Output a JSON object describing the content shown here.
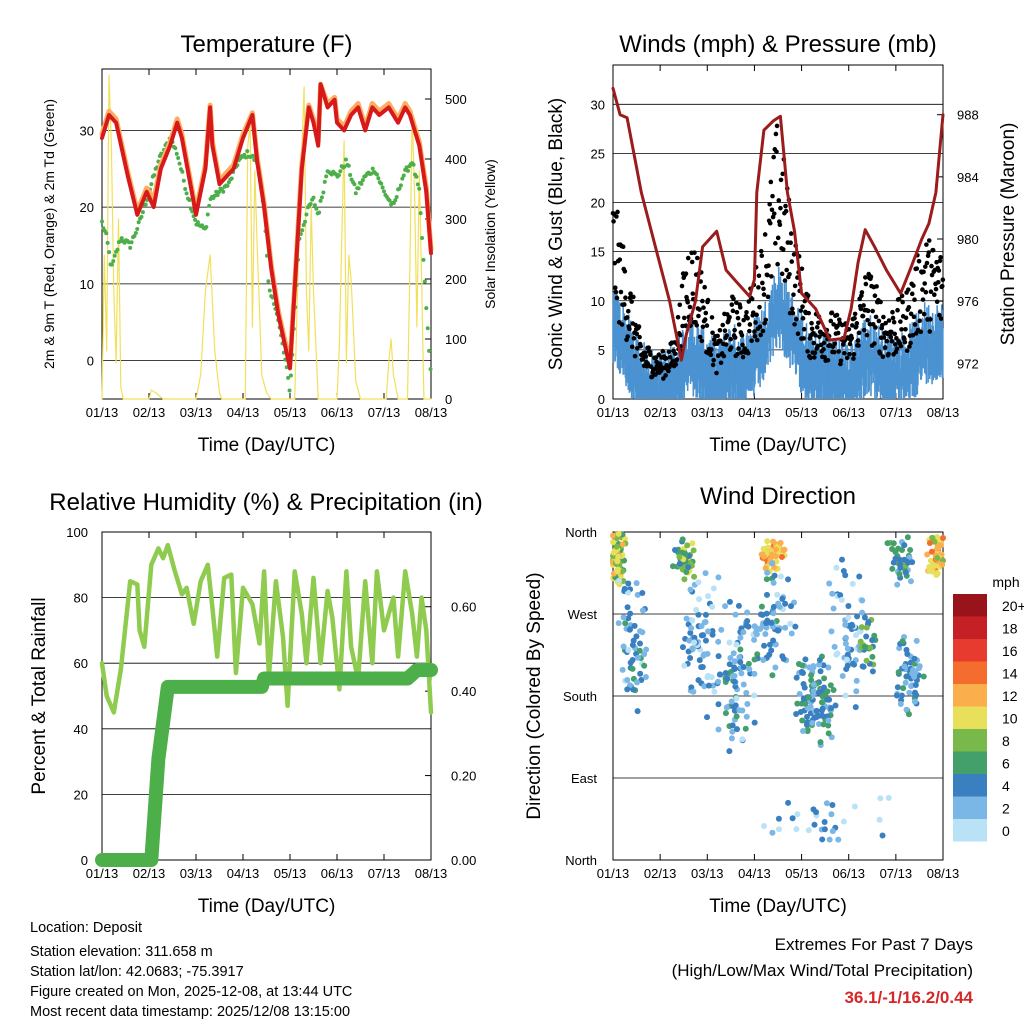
{
  "x_ticks": [
    "01/13",
    "02/13",
    "03/13",
    "04/13",
    "05/13",
    "06/13",
    "07/13",
    "08/13"
  ],
  "x_axis_label": "Time (Day/UTC)",
  "colors": {
    "temp2m": "#d7191c",
    "temp9m": "#fdae61",
    "dewpoint": "#4daf4a",
    "solar": "#f2e05a",
    "gust": "#000000",
    "wind": "#4b92d1",
    "pressure": "#9b1c1c",
    "rh": "#8fcb4f",
    "precip": "#4daf4a",
    "extremes": "#d62728"
  },
  "chart_data": [
    {
      "type": "line",
      "title": "Temperature (F)",
      "xlabel": "Time (Day/UTC)",
      "ylabel_left": "2m & 9m T (Red, Orange) & 2m Td (Green)",
      "ylabel_right": "Solar Insolation (Yellow)",
      "ylim_left": [
        -5,
        38
      ],
      "left_ticks": [
        0,
        10,
        20,
        30
      ],
      "ylim_right": [
        0,
        550
      ],
      "right_ticks": [
        0,
        100,
        200,
        300,
        400,
        500
      ],
      "x_days": [
        0,
        1,
        2,
        3,
        4,
        5,
        6,
        7
      ],
      "series": [
        {
          "name": "2m T",
          "axis": "left",
          "color_key": "temp2m",
          "x": [
            0,
            0.15,
            0.3,
            0.55,
            0.75,
            0.95,
            1.1,
            1.25,
            1.45,
            1.6,
            1.7,
            1.85,
            2.0,
            2.2,
            2.3,
            2.35,
            2.5,
            2.65,
            2.8,
            3.0,
            3.2,
            3.3,
            3.45,
            3.6,
            3.75,
            4.0,
            4.25,
            4.4,
            4.5,
            4.6,
            4.65,
            4.8,
            4.95,
            5.0,
            5.15,
            5.3,
            5.45,
            5.6,
            5.75,
            5.9,
            6.1,
            6.3,
            6.45,
            6.55,
            6.75,
            6.9,
            7.0
          ],
          "y": [
            29,
            32,
            31,
            24,
            19,
            22,
            20,
            25,
            28,
            31,
            29,
            24,
            19,
            25,
            33,
            28,
            23,
            24,
            25,
            29,
            32,
            26,
            20,
            12,
            6,
            -1,
            25,
            33,
            31,
            28,
            36,
            33,
            34,
            31,
            30,
            32,
            33,
            30,
            33,
            32,
            33,
            31,
            33,
            32,
            28,
            22,
            14
          ]
        },
        {
          "name": "9m T",
          "axis": "left",
          "color_key": "temp9m",
          "x": [
            0,
            0.15,
            0.3,
            0.55,
            0.75,
            0.95,
            1.1,
            1.25,
            1.45,
            1.6,
            1.7,
            1.85,
            2.0,
            2.2,
            2.3,
            2.35,
            2.5,
            2.65,
            2.8,
            3.0,
            3.2,
            3.3,
            3.45,
            3.6,
            3.75,
            4.0,
            4.25,
            4.4,
            4.5,
            4.6,
            4.65,
            4.8,
            4.95,
            5.0,
            5.15,
            5.3,
            5.45,
            5.6,
            5.75,
            5.9,
            6.1,
            6.3,
            6.45,
            6.55,
            6.75,
            6.9,
            7.0
          ],
          "y": [
            29.5,
            32.5,
            31.5,
            24.5,
            19.5,
            22.5,
            21,
            25.5,
            28.5,
            31.5,
            29.5,
            24.5,
            19.5,
            25.5,
            33.3,
            28.5,
            23.5,
            24.5,
            25.5,
            29.5,
            32.3,
            26.5,
            20.5,
            12.5,
            6.5,
            -0.5,
            25.5,
            33.3,
            31.5,
            28.5,
            36,
            33.5,
            34.3,
            31.5,
            30.5,
            32.5,
            33.5,
            30.5,
            33.5,
            32.5,
            33.5,
            31.5,
            33.5,
            32.5,
            28.5,
            22.5,
            14.5
          ]
        },
        {
          "name": "2m Td",
          "axis": "left",
          "color_key": "dewpoint",
          "x": [
            0,
            0.1,
            0.2,
            0.4,
            0.6,
            0.8,
            1.0,
            1.2,
            1.45,
            1.6,
            1.8,
            2.0,
            2.2,
            2.3,
            2.5,
            2.7,
            2.9,
            3.1,
            3.3,
            3.45,
            3.55,
            3.7,
            3.9,
            4.0,
            4.2,
            4.4,
            4.5,
            4.6,
            4.8,
            5.0,
            5.2,
            5.4,
            5.6,
            5.8,
            6.0,
            6.2,
            6.4,
            6.6,
            6.75,
            6.85,
            6.95,
            7.0
          ],
          "y": [
            18,
            16,
            12,
            16,
            15,
            18,
            22,
            26,
            29,
            27,
            22,
            18,
            17,
            21,
            22,
            23,
            26,
            27,
            26,
            20,
            9,
            7,
            0,
            -4,
            16,
            20,
            21,
            19,
            25,
            24,
            26,
            22,
            24,
            25,
            22,
            20,
            24,
            26,
            22,
            12,
            2,
            -2
          ]
        },
        {
          "name": "Solar Insolation",
          "axis": "right",
          "color_key": "solar",
          "x": [
            0,
            0.05,
            0.1,
            0.15,
            0.2,
            0.25,
            0.3,
            0.35,
            0.4,
            0.45,
            0.5,
            1.0,
            1.05,
            1.15,
            1.3,
            1.5,
            1.9,
            2.0,
            2.1,
            2.2,
            2.3,
            2.4,
            2.5,
            2.55,
            3.0,
            3.05,
            3.1,
            3.15,
            3.2,
            3.25,
            3.3,
            3.4,
            3.5,
            3.6,
            4.0,
            4.05,
            4.1,
            4.2,
            4.3,
            4.35,
            4.4,
            4.45,
            4.5,
            4.6,
            4.7,
            4.8,
            4.9,
            5.0,
            5.05,
            5.1,
            5.15,
            5.2,
            5.25,
            5.3,
            5.4,
            5.5,
            6.0,
            6.05,
            6.1,
            6.15,
            6.2,
            6.3,
            6.5,
            6.55,
            6.6,
            6.65,
            6.7,
            6.75,
            6.8,
            6.85,
            6.9,
            7.0
          ],
          "y": [
            0,
            240,
            80,
            540,
            420,
            180,
            60,
            300,
            20,
            0,
            0,
            0,
            15,
            10,
            0,
            0,
            0,
            0,
            40,
            180,
            240,
            80,
            10,
            0,
            0,
            0,
            420,
            460,
            120,
            380,
            260,
            40,
            10,
            0,
            0,
            0,
            0,
            300,
            520,
            180,
            80,
            320,
            180,
            0,
            0,
            0,
            0,
            0,
            90,
            260,
            430,
            60,
            240,
            200,
            30,
            0,
            0,
            0,
            60,
            100,
            40,
            0,
            0,
            220,
            480,
            340,
            120,
            380,
            200,
            0,
            0,
            0
          ]
        }
      ]
    },
    {
      "type": "scatter",
      "title": "Winds (mph) & Pressure (mb)",
      "xlabel": "Time (Day/UTC)",
      "ylabel_left": "Sonic Wind & Gust (Blue, Black)",
      "ylabel_right": "Station Pressure (Maroon)",
      "ylim_left": [
        0,
        34
      ],
      "left_ticks": [
        0,
        5,
        10,
        15,
        20,
        25,
        30
      ],
      "ylim_right": [
        969.7,
        991.2
      ],
      "right_ticks": [
        972,
        976,
        980,
        984,
        988
      ],
      "series": [
        {
          "name": "Sonic Wind mean",
          "axis": "left",
          "color_key": "wind",
          "x": [
            0,
            0.3,
            0.6,
            1.0,
            1.3,
            1.6,
            1.8,
            2.2,
            2.5,
            2.8,
            3.2,
            3.5,
            3.8,
            4.2,
            4.6,
            5.0,
            5.4,
            5.8,
            6.2,
            6.6,
            7.0
          ],
          "y": [
            8,
            5,
            2,
            1,
            2,
            5,
            4,
            2,
            4,
            3,
            6,
            10,
            7,
            3,
            3,
            2,
            5,
            3,
            3,
            6,
            6
          ]
        },
        {
          "name": "Gust mean",
          "axis": "left",
          "color_key": "gust",
          "x": [
            0,
            0.3,
            0.6,
            1.0,
            1.3,
            1.6,
            1.8,
            2.2,
            2.5,
            2.8,
            3.2,
            3.5,
            3.8,
            4.2,
            4.6,
            5.0,
            5.4,
            5.8,
            6.2,
            6.6,
            7.0
          ],
          "y": [
            14,
            9,
            4,
            3,
            4,
            11,
            10,
            4,
            7,
            6,
            11,
            19,
            12,
            6,
            6,
            5,
            9,
            6,
            7,
            11,
            10
          ]
        },
        {
          "name": "Station Pressure",
          "axis": "right",
          "color_key": "pressure",
          "x": [
            0,
            0.15,
            0.3,
            0.6,
            0.9,
            1.2,
            1.45,
            1.55,
            1.75,
            1.9,
            2.2,
            2.4,
            2.6,
            2.9,
            3.0,
            3.05,
            3.2,
            3.4,
            3.55,
            3.7,
            3.85,
            4.0,
            4.3,
            4.6,
            4.9,
            5.05,
            5.2,
            5.35,
            5.55,
            5.8,
            6.1,
            6.3,
            6.55,
            6.7,
            6.85,
            7.0
          ],
          "y": [
            989.7,
            988,
            987.8,
            983,
            979.5,
            976,
            972.2,
            973.8,
            976,
            979.5,
            980.5,
            978,
            977.3,
            976.3,
            977.4,
            983,
            987,
            987.6,
            987.9,
            983,
            980.5,
            976.5,
            975.5,
            973.5,
            973.6,
            975.5,
            978.5,
            980.6,
            979.5,
            978,
            976.5,
            978,
            980,
            981,
            983,
            988
          ]
        }
      ]
    },
    {
      "type": "line",
      "title": "Relative Humidity (%) & Precipitation (in)",
      "xlabel": "Time (Day/UTC)",
      "ylabel_left": "Percent & Total Rainfall",
      "ylim_left": [
        0,
        100
      ],
      "left_ticks": [
        0,
        20,
        40,
        60,
        80,
        100
      ],
      "ylim_right": [
        0,
        0.777
      ],
      "right_ticks": [
        "0.00",
        "0.20",
        "0.40",
        "0.60"
      ],
      "series": [
        {
          "name": "Relative Humidity",
          "axis": "left",
          "color_key": "rh",
          "x": [
            0,
            0.1,
            0.25,
            0.4,
            0.6,
            0.75,
            0.8,
            0.9,
            1.05,
            1.2,
            1.3,
            1.4,
            1.55,
            1.7,
            1.8,
            1.95,
            2.1,
            2.25,
            2.35,
            2.45,
            2.6,
            2.75,
            2.85,
            3.0,
            3.2,
            3.35,
            3.45,
            3.55,
            3.7,
            3.85,
            3.95,
            4.1,
            4.25,
            4.35,
            4.5,
            4.65,
            4.8,
            4.9,
            5.05,
            5.2,
            5.3,
            5.45,
            5.6,
            5.75,
            5.85,
            6.0,
            6.2,
            6.3,
            6.45,
            6.6,
            6.7,
            6.8,
            6.9,
            7.0
          ],
          "y": [
            60,
            50,
            45,
            58,
            85,
            84,
            70,
            65,
            90,
            95,
            92,
            96,
            88,
            81,
            83,
            72,
            85,
            90,
            77,
            62,
            86,
            87,
            57,
            83,
            78,
            66,
            88,
            56,
            85,
            68,
            47,
            88,
            75,
            60,
            86,
            60,
            82,
            74,
            52,
            88,
            65,
            55,
            85,
            60,
            88,
            70,
            80,
            62,
            88,
            75,
            62,
            80,
            70,
            45
          ]
        },
        {
          "name": "Total Precipitation",
          "axis": "right",
          "color_key": "precip",
          "x": [
            0,
            0.6,
            1.05,
            1.2,
            1.4,
            1.7,
            2.0,
            2.5,
            3.0,
            3.4,
            3.45,
            3.6,
            4.0,
            4.5,
            5.0,
            5.5,
            6.0,
            6.5,
            6.6,
            6.7,
            7.0
          ],
          "y": [
            0,
            0,
            0,
            0.24,
            0.41,
            0.41,
            0.41,
            0.41,
            0.41,
            0.41,
            0.43,
            0.43,
            0.43,
            0.43,
            0.43,
            0.43,
            0.43,
            0.43,
            0.44,
            0.45,
            0.45
          ]
        }
      ]
    },
    {
      "type": "scatter",
      "title": "Wind Direction",
      "xlabel": "Time (Day/UTC)",
      "ylabel": "Direction (Colored By Speed)",
      "ylim": [
        0,
        360
      ],
      "y_ticks": [
        {
          "value": 0,
          "label": "North"
        },
        {
          "value": 90,
          "label": "East"
        },
        {
          "value": 180,
          "label": "South"
        },
        {
          "value": 270,
          "label": "West"
        },
        {
          "value": 360,
          "label": "North"
        }
      ],
      "clusters": [
        {
          "x_center": 0.1,
          "x_spread": 0.18,
          "dir_center": 335,
          "dir_spread": 40,
          "speed": 9,
          "count": 70
        },
        {
          "x_center": 0.4,
          "x_spread": 0.35,
          "dir_center": 230,
          "dir_spread": 80,
          "speed": 3,
          "count": 60
        },
        {
          "x_center": 1.5,
          "x_spread": 0.25,
          "dir_center": 330,
          "dir_spread": 25,
          "speed": 7,
          "count": 45
        },
        {
          "x_center": 1.9,
          "x_spread": 0.5,
          "dir_center": 240,
          "dir_spread": 90,
          "speed": 2,
          "count": 70
        },
        {
          "x_center": 2.6,
          "x_spread": 0.5,
          "dir_center": 200,
          "dir_spread": 90,
          "speed": 3,
          "count": 90
        },
        {
          "x_center": 3.4,
          "x_spread": 0.3,
          "dir_center": 335,
          "dir_spread": 25,
          "speed": 12,
          "count": 50
        },
        {
          "x_center": 3.4,
          "x_spread": 0.5,
          "dir_center": 260,
          "dir_spread": 70,
          "speed": 3,
          "count": 70
        },
        {
          "x_center": 4.3,
          "x_spread": 0.5,
          "dir_center": 180,
          "dir_spread": 60,
          "speed": 4,
          "count": 110
        },
        {
          "x_center": 5.0,
          "x_spread": 0.5,
          "dir_center": 250,
          "dir_spread": 90,
          "speed": 2,
          "count": 60
        },
        {
          "x_center": 5.4,
          "x_spread": 0.2,
          "dir_center": 240,
          "dir_spread": 40,
          "speed": 6,
          "count": 25
        },
        {
          "x_center": 6.1,
          "x_spread": 0.3,
          "dir_center": 330,
          "dir_spread": 30,
          "speed": 5,
          "count": 40
        },
        {
          "x_center": 6.3,
          "x_spread": 0.35,
          "dir_center": 200,
          "dir_spread": 50,
          "speed": 4,
          "count": 60
        },
        {
          "x_center": 6.85,
          "x_spread": 0.2,
          "dir_center": 335,
          "dir_spread": 25,
          "speed": 11,
          "count": 55
        },
        {
          "x_center": 4.5,
          "x_spread": 1.5,
          "dir_center": 40,
          "dir_spread": 40,
          "speed": 2,
          "count": 30
        }
      ],
      "legend": {
        "title": "mph",
        "placement": "right",
        "labels": [
          "20+",
          "18",
          "16",
          "14",
          "12",
          "10",
          "8",
          "6",
          "4",
          "2",
          "0"
        ],
        "colors": [
          "#99131b",
          "#c62027",
          "#e63b2e",
          "#f46d2e",
          "#fbae4c",
          "#e8e05a",
          "#79b84a",
          "#44a06a",
          "#3a7fc0",
          "#7ab6e6",
          "#b9e2f7"
        ]
      }
    }
  ],
  "info": {
    "location": "Location: Deposit",
    "elevation": "Station elevation: 311.658 m",
    "latlon": "Station lat/lon: 42.0683; -75.3917",
    "created": "Figure created on Mon, 2025-12-08, at 13:44 UTC",
    "recent": "Most recent data timestamp: 2025/12/08 13:15:00"
  },
  "extremes": {
    "title": "Extremes For Past 7 Days",
    "subtitle": "(High/Low/Max Wind/Total Precipitation)",
    "values": "36.1/-1/16.2/0.44"
  }
}
